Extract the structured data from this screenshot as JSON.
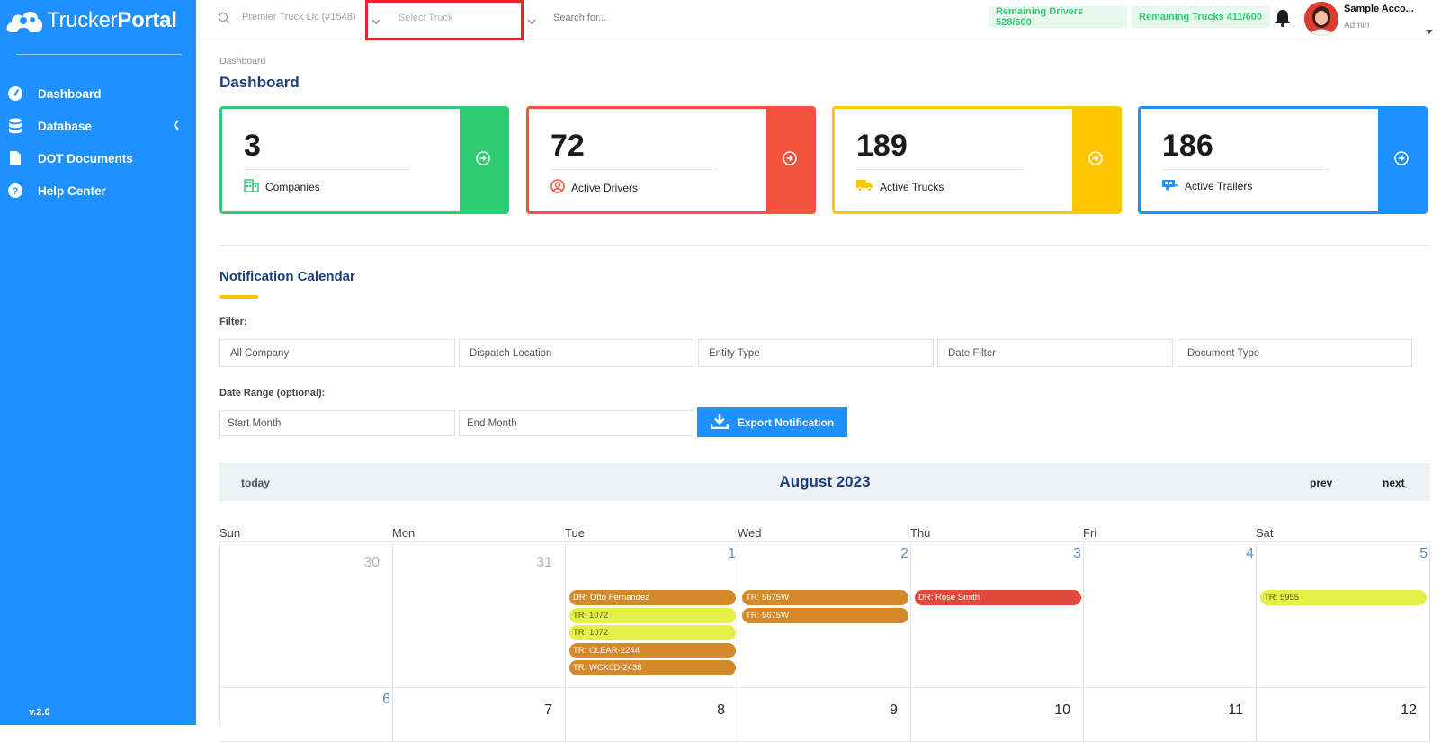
{
  "app": {
    "logo_main": "Trucker",
    "logo_suffix": "Portal",
    "version": "v.2.0"
  },
  "sidebar": {
    "items": [
      {
        "label": "Dashboard",
        "icon": "gauge-icon"
      },
      {
        "label": "Database",
        "icon": "database-icon"
      },
      {
        "label": "DOT Documents",
        "icon": "document-icon"
      },
      {
        "label": "Help Center",
        "icon": "question-icon"
      }
    ]
  },
  "topbar": {
    "company_select": "Premier Truck Llc (#1548)",
    "truck_select": "Select Truck",
    "search_placeholder": "Search for...",
    "remaining_drivers": "Remaining Drivers 528/600",
    "remaining_trucks": "Remaining Trucks 411/600",
    "account_name": "Sample Acco...",
    "account_role": "Admin"
  },
  "breadcrumb": "Dashboard",
  "page_title": "Dashboard",
  "cards": [
    {
      "value": "3",
      "label": "Companies",
      "color": "#2ecc71",
      "icon": "building-icon"
    },
    {
      "value": "72",
      "label": "Active Drivers",
      "color": "#f4533b",
      "icon": "user-circle-icon"
    },
    {
      "value": "189",
      "label": "Active Trucks",
      "color": "#ffc700",
      "icon": "truck-icon"
    },
    {
      "value": "186",
      "label": "Active Trailers",
      "color": "#1e90ff",
      "icon": "trailer-icon"
    }
  ],
  "calendar_section": {
    "title": "Notification Calendar",
    "filter_label": "Filter:",
    "filters": [
      "All Company",
      "Dispatch Location",
      "Entity Type",
      "Date Filter",
      "Document Type"
    ],
    "date_range_label": "Date Range (optional):",
    "start_placeholder": "Start Month",
    "end_placeholder": "End Month",
    "export_label": "Export Notification"
  },
  "calendar": {
    "today_label": "today",
    "month_title": "August 2023",
    "prev_label": "prev",
    "next_label": "next",
    "weekdays": [
      "Sun",
      "Mon",
      "Tue",
      "Wed",
      "Thu",
      "Fri",
      "Sat"
    ],
    "week1": [
      "30",
      "31",
      "1",
      "2",
      "3",
      "4",
      "5"
    ],
    "week2": [
      "6",
      "7",
      "8",
      "9",
      "10",
      "11",
      "12"
    ],
    "events": {
      "tue": [
        "DR: Otto Fernandez",
        "TR: 1072",
        "TR: 1072",
        "TR: CLEAR-2244",
        "TR: WCK0D-2438"
      ],
      "wed": [
        "TR: 5675W",
        "TR: 5675W"
      ],
      "thu": [
        "DR: Rose Smith"
      ],
      "sat": [
        "TR: 5955"
      ]
    }
  }
}
